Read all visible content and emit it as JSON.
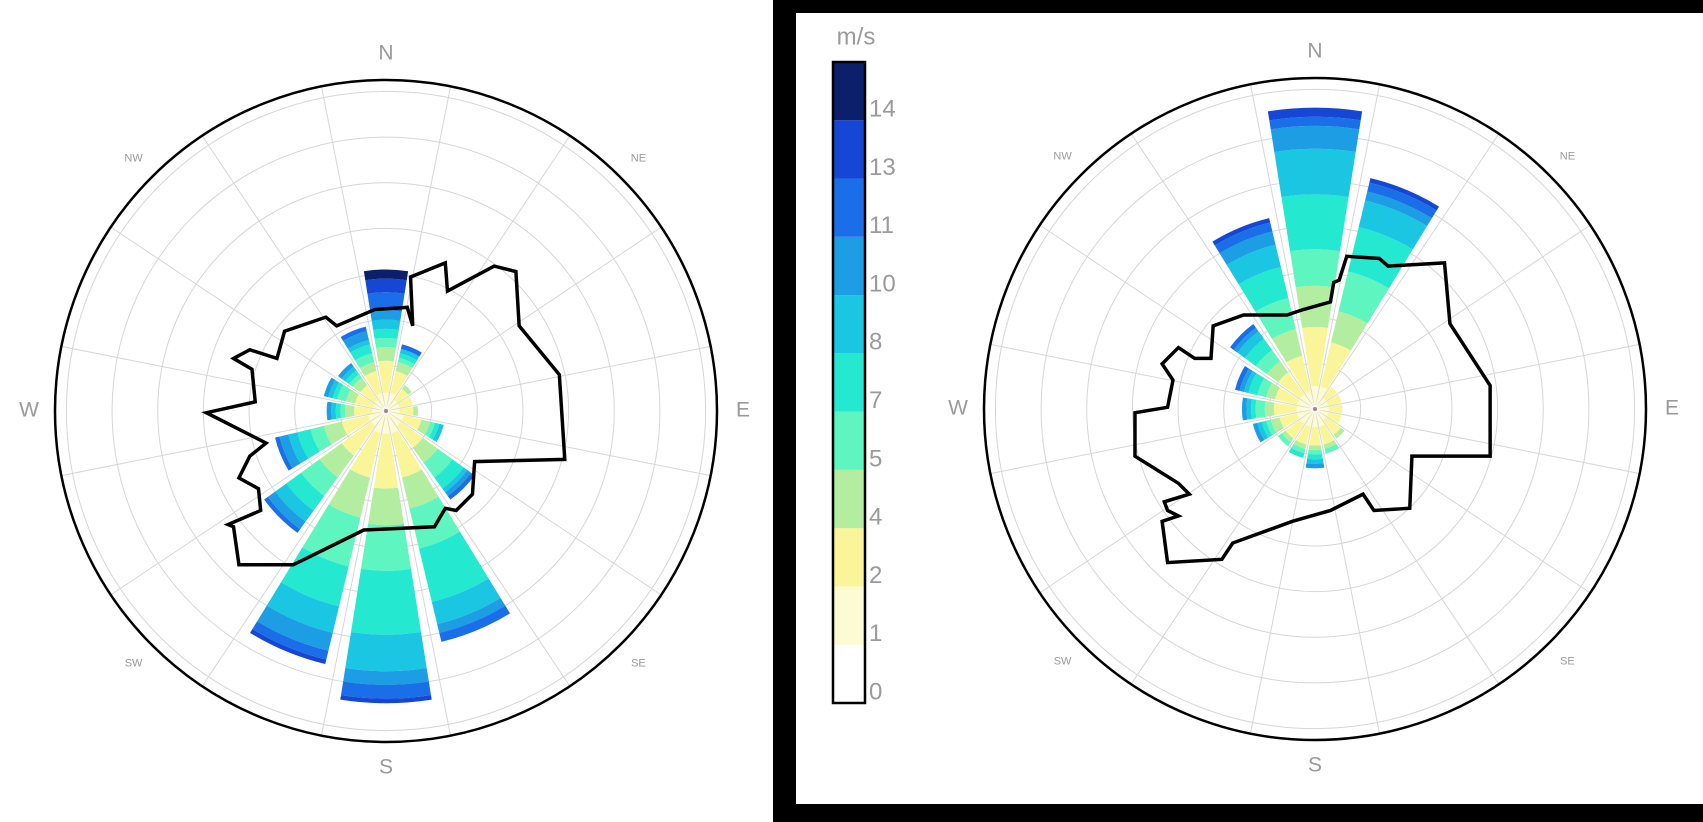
{
  "chart_data": [
    {
      "type": "windrose",
      "categories": [
        "N",
        null,
        "NE",
        null,
        "E",
        null,
        "SE",
        null,
        "S",
        null,
        "SW",
        null,
        "W",
        null,
        "NW",
        null
      ],
      "rlim": [
        0,
        7.25
      ],
      "rticks": [
        1,
        2,
        3,
        4,
        5,
        6,
        7
      ],
      "series": [
        {
          "values": [
            0.1,
            0.1,
            0.1,
            0.1,
            0.1,
            0.1,
            0.1,
            0.1,
            0.1,
            0.1,
            0.1,
            0.1,
            0.1,
            0.1,
            0.1,
            0.1
          ]
        },
        {
          "values": [
            0.3,
            0.3,
            0.2,
            0.2,
            0.2,
            0.3,
            0.3,
            0.4,
            0.4,
            0.4,
            0.3,
            0.3,
            0.2,
            0.2,
            0.2,
            0.3
          ]
        },
        {
          "values": [
            0.7,
            0.5,
            0.3,
            0.3,
            0.3,
            0.4,
            0.6,
            1.0,
            1.2,
            1.0,
            0.8,
            0.6,
            0.4,
            0.4,
            0.4,
            0.5
          ]
        },
        {
          "values": [
            0.3,
            0.2,
            0.1,
            0,
            0.1,
            0.2,
            0.4,
            0.7,
            0.8,
            0.9,
            0.6,
            0.4,
            0.2,
            0.2,
            0.2,
            0.2
          ]
        },
        {
          "values": [
            0.2,
            0.1,
            0,
            0,
            0,
            0.1,
            0.4,
            0.9,
            1.0,
            1.1,
            0.5,
            0.3,
            0.1,
            0.2,
            0.1,
            0.2
          ]
        },
        {
          "values": [
            0.2,
            0.1,
            0,
            0,
            0,
            0.1,
            0.3,
            1.2,
            1.4,
            0.9,
            0.4,
            0.3,
            0.1,
            0.1,
            0.1,
            0.2
          ]
        },
        {
          "values": [
            0.2,
            0.1,
            0,
            0,
            0,
            0.1,
            0.1,
            0.5,
            0.8,
            0.6,
            0.3,
            0.2,
            0.1,
            0.1,
            0.1,
            0.1
          ]
        },
        {
          "values": [
            0.2,
            0,
            0,
            0,
            0,
            0,
            0.1,
            0.2,
            0.3,
            0.4,
            0.2,
            0.2,
            0.1,
            0.1,
            0.1,
            0.2
          ]
        },
        {
          "values": [
            0.4,
            0.1,
            0,
            0,
            0,
            0,
            0.1,
            0.2,
            0.3,
            0.2,
            0.1,
            0.1,
            0,
            0,
            0,
            0.1
          ]
        },
        {
          "values": [
            0.3,
            0,
            0,
            0,
            0,
            0,
            0,
            0,
            0.1,
            0.1,
            0,
            0,
            0,
            0,
            0,
            0
          ]
        },
        {
          "values": [
            0.2,
            0,
            0,
            0,
            0,
            0,
            0,
            0,
            0,
            0,
            0,
            0,
            0,
            0,
            0,
            0
          ]
        }
      ]
    },
    {
      "type": "windrose",
      "categories": [
        "N",
        null,
        "NE",
        null,
        "E",
        null,
        "SE",
        null,
        "S",
        null,
        "SW",
        null,
        "W",
        null,
        "NW",
        null
      ],
      "rlim": [
        0,
        7.25
      ],
      "rticks": [
        1,
        2,
        3,
        4,
        5,
        6,
        7
      ],
      "series": [
        {
          "values": [
            0.1,
            0.1,
            0.1,
            0.1,
            0.1,
            0.1,
            0.1,
            0.1,
            0.1,
            0.1,
            0.1,
            0.1,
            0.1,
            0.1,
            0.1,
            0.1
          ]
        },
        {
          "values": [
            0.4,
            0.4,
            0.2,
            0.2,
            0.2,
            0.2,
            0.2,
            0.3,
            0.3,
            0.3,
            0.3,
            0.3,
            0.3,
            0.3,
            0.3,
            0.3
          ]
        },
        {
          "values": [
            1.3,
            1.0,
            0.3,
            0.3,
            0.3,
            0.3,
            0.4,
            0.4,
            0.4,
            0.4,
            0.4,
            0.4,
            0.5,
            0.5,
            0.6,
            0.8
          ]
        },
        {
          "values": [
            0.9,
            0.7,
            0,
            0,
            0,
            0,
            0.1,
            0.1,
            0.1,
            0.1,
            0.1,
            0.2,
            0.2,
            0.2,
            0.3,
            0.6
          ]
        },
        {
          "values": [
            0.8,
            0.9,
            0,
            0,
            0,
            0,
            0,
            0.1,
            0.1,
            0.1,
            0.1,
            0.1,
            0.2,
            0.2,
            0.3,
            0.7
          ]
        },
        {
          "values": [
            1.2,
            1.0,
            0,
            0,
            0,
            0,
            0,
            0,
            0.1,
            0.1,
            0,
            0.1,
            0.1,
            0.2,
            0.3,
            0.7
          ]
        },
        {
          "values": [
            1.0,
            0.6,
            0,
            0,
            0,
            0,
            0,
            0,
            0.1,
            0,
            0,
            0.1,
            0.1,
            0.1,
            0.2,
            0.5
          ]
        },
        {
          "values": [
            0.5,
            0.2,
            0,
            0,
            0,
            0,
            0,
            0,
            0.1,
            0,
            0,
            0.1,
            0.1,
            0.1,
            0.1,
            0.3
          ]
        },
        {
          "values": [
            0.2,
            0.2,
            0,
            0,
            0,
            0,
            0,
            0,
            0,
            0,
            0,
            0,
            0,
            0.1,
            0.1,
            0.2
          ]
        },
        {
          "values": [
            0.2,
            0.1,
            0,
            0,
            0,
            0,
            0,
            0,
            0,
            0,
            0,
            0,
            0,
            0,
            0,
            0.1
          ]
        },
        {
          "values": [
            0,
            0,
            0,
            0,
            0,
            0,
            0,
            0,
            0,
            0,
            0,
            0,
            0,
            0,
            0,
            0
          ]
        }
      ]
    }
  ],
  "colorbar": {
    "label": "m/s",
    "ticks": [
      0,
      1,
      2,
      4,
      5,
      7,
      8,
      10,
      11,
      13,
      14
    ],
    "colors": [
      "#ffffff",
      "#fdfbd3",
      "#fbf59a",
      "#b2eda0",
      "#5ef5c0",
      "#25e8d0",
      "#1ac6e2",
      "#1c9de4",
      "#1a6fe8",
      "#1546d4",
      "#0b1f6a"
    ]
  }
}
